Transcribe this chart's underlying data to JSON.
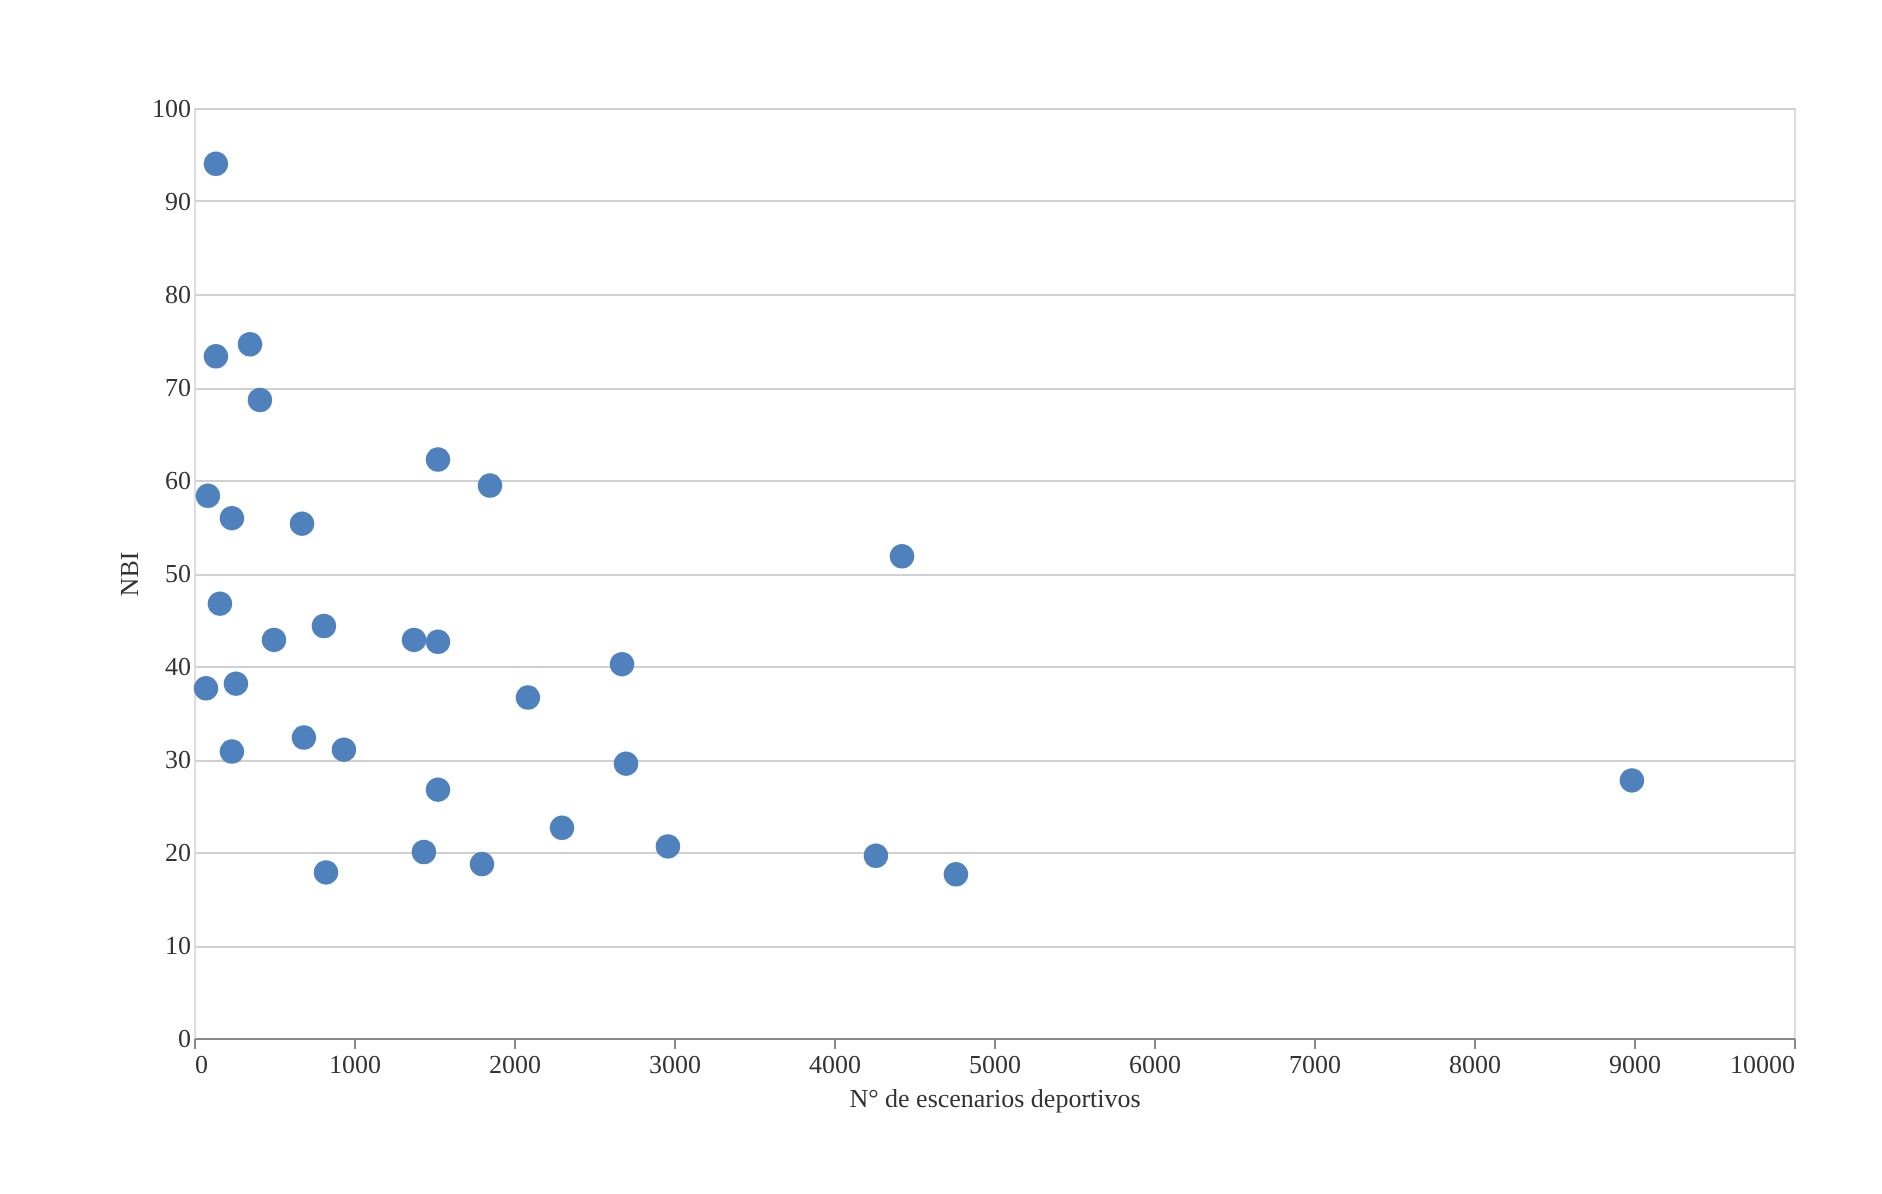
{
  "chart_data": {
    "type": "scatter",
    "xlabel": "N° de escenarios deportivos",
    "ylabel": "NBI",
    "xlim": [
      0,
      10000
    ],
    "xticks": [
      0,
      1000,
      2000,
      3000,
      4000,
      5000,
      6000,
      7000,
      8000,
      9000,
      10000
    ],
    "ylim": [
      0,
      100
    ],
    "yticks": [
      0,
      10,
      20,
      30,
      40,
      50,
      60,
      70,
      80,
      90,
      100
    ],
    "grid": "y",
    "marker": "circle",
    "series": [
      {
        "color": "#4f81bd",
        "x": [
          137,
          137,
          350,
          412,
          87,
          237,
          675,
          1525,
          1850,
          4425,
          162,
          500,
          812,
          1375,
          1525,
          2675,
          2087,
          75,
          262,
          237,
          687,
          937,
          1525,
          2700,
          8987,
          2300,
          2962,
          1437,
          1800,
          825,
          4262,
          4762
        ],
        "values": [
          94.0,
          73.3,
          74.6,
          68.6,
          58.3,
          55.9,
          55.3,
          62.2,
          59.4,
          51.8,
          46.7,
          42.8,
          44.3,
          42.8,
          42.6,
          40.2,
          36.6,
          37.6,
          38.1,
          30.8,
          32.3,
          31.0,
          26.7,
          29.5,
          27.7,
          22.6,
          20.6,
          20.0,
          18.7,
          17.8,
          19.6,
          17.6
        ]
      }
    ]
  }
}
